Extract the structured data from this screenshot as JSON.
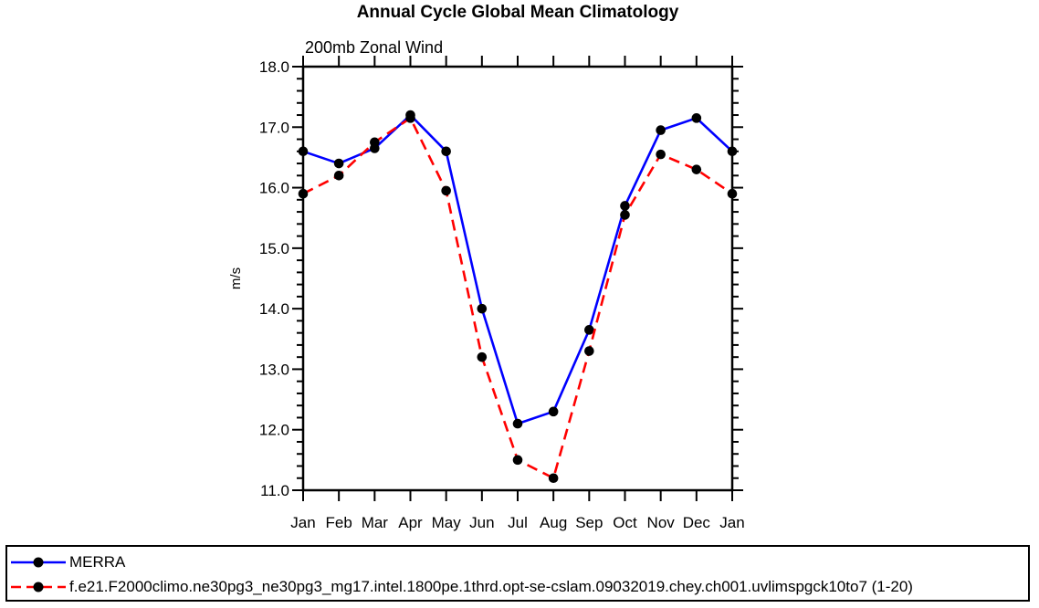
{
  "chart_data": {
    "type": "line",
    "title": "Annual Cycle Global Mean Climatology",
    "subtitle": "200mb Zonal Wind",
    "xlabel": "",
    "ylabel": "m/s",
    "ylim": [
      11.0,
      18.0
    ],
    "ytick_step": 1.0,
    "ytick_minor_step": 0.2,
    "ytick_labels": [
      "11.0",
      "12.0",
      "13.0",
      "14.0",
      "15.0",
      "16.0",
      "17.0",
      "18.0"
    ],
    "categories": [
      "Jan",
      "Feb",
      "Mar",
      "Apr",
      "May",
      "Jun",
      "Jul",
      "Aug",
      "Sep",
      "Oct",
      "Nov",
      "Dec",
      "Jan"
    ],
    "grid": false,
    "legend_position": "bottom",
    "frame_color": "#000000",
    "marker_shape": "filled-circle",
    "series": [
      {
        "name": "MERRA",
        "color": "#0000ff",
        "line_style": "solid",
        "marker_color": "#000000",
        "values": [
          16.6,
          16.4,
          16.65,
          17.2,
          16.6,
          14.0,
          12.1,
          12.3,
          13.65,
          15.7,
          16.95,
          17.15,
          16.6
        ]
      },
      {
        "name": "f.e21.F2000climo.ne30pg3_ne30pg3_mg17.intel.1800pe.1thrd.opt-se-cslam.09032019.chey.ch001.uvlimspgck10to7 (1-20)",
        "color": "#ff0000",
        "line_style": "dashed",
        "marker_color": "#000000",
        "values": [
          15.9,
          16.2,
          16.75,
          17.15,
          15.95,
          13.2,
          11.5,
          11.2,
          13.3,
          15.55,
          16.55,
          16.3,
          15.9
        ]
      }
    ]
  }
}
